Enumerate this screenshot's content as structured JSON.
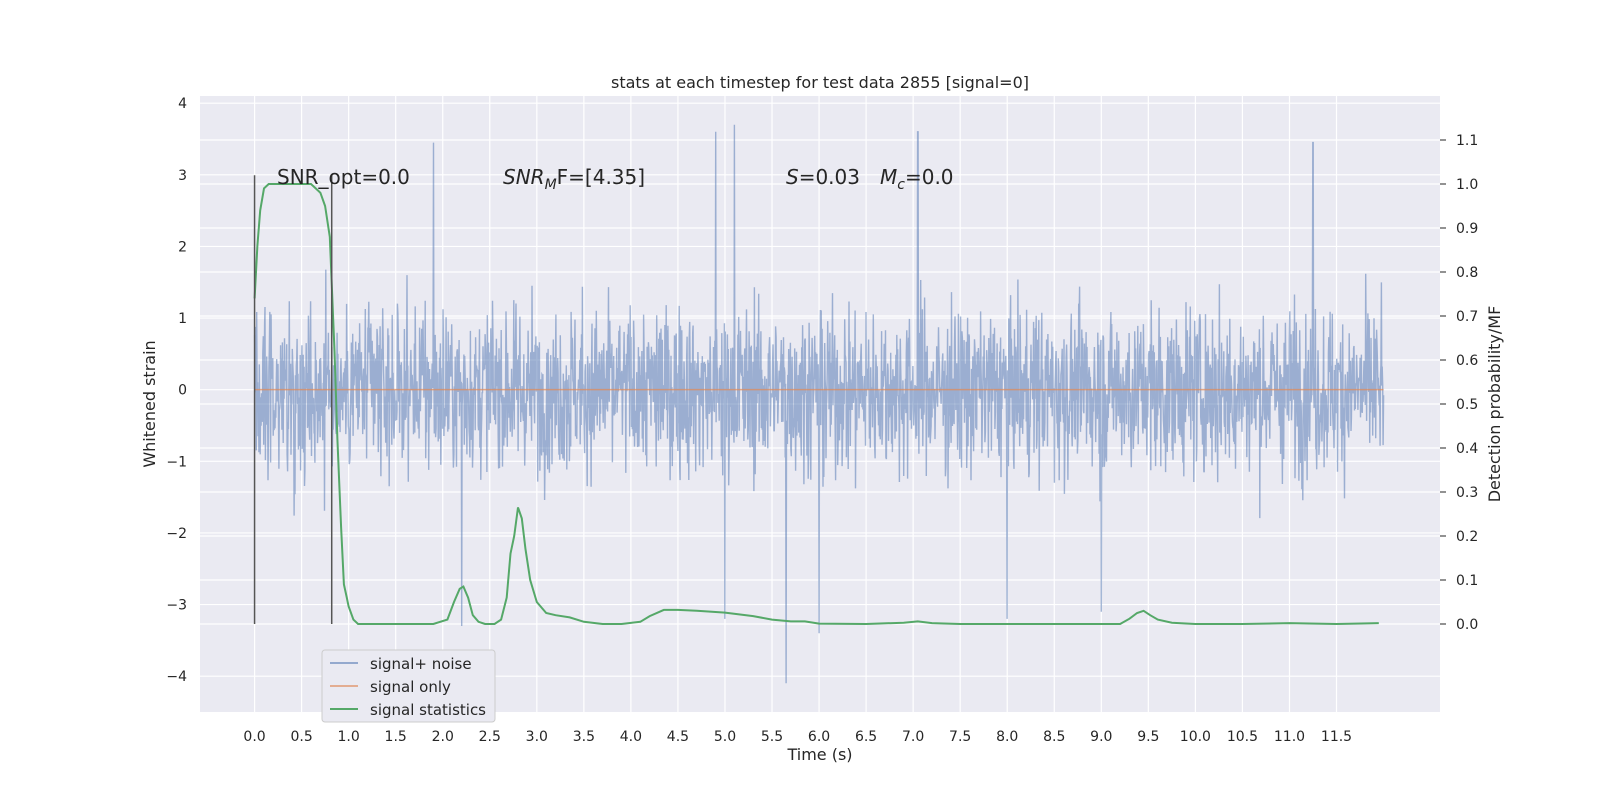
{
  "chart_data": {
    "type": "line",
    "title": "stats at each timestep for test data 2855 [signal=0]",
    "xlabel": "Time (s)",
    "ylabel_left": "Whitened strain",
    "ylabel_right": "Detection probability/MF",
    "xlim": [
      -0.58,
      12.6
    ],
    "ylim_left": [
      -4.5,
      4.1
    ],
    "ylim_right": [
      -0.2,
      1.2
    ],
    "x_ticks": [
      "0.0",
      "0.5",
      "1.0",
      "1.5",
      "2.0",
      "2.5",
      "3.0",
      "3.5",
      "4.0",
      "4.5",
      "5.0",
      "5.5",
      "6.0",
      "6.5",
      "7.0",
      "7.5",
      "8.0",
      "8.5",
      "9.0",
      "9.5",
      "10.0",
      "10.5",
      "11.0",
      "11.5"
    ],
    "y_ticks_left": [
      "−4",
      "−3",
      "−2",
      "−1",
      "0",
      "1",
      "2",
      "3",
      "4"
    ],
    "y_ticks_right": [
      "0.0",
      "0.1",
      "0.2",
      "0.3",
      "0.4",
      "0.5",
      "0.6",
      "0.7",
      "0.8",
      "0.9",
      "1.0",
      "1.1"
    ],
    "grid": true,
    "legend_position": "lower-left",
    "annotations": {
      "snr_opt": "SNR_opt=0.0",
      "snr_mf_base": "SNR",
      "snr_mf_sub": "M",
      "snr_mf_rest": "F=[4.35]",
      "s_var": "S",
      "s_val": "=0.03",
      "mc_var": "M",
      "mc_sub": "c",
      "mc_val": "=0.0"
    },
    "vlines": [
      0.0,
      0.82
    ],
    "series": [
      {
        "name": "signal+ noise",
        "color": "#4c72b0",
        "alpha": 0.5,
        "axis": "left",
        "t_range": [
          0.0,
          12.0
        ],
        "envelope_upper_typical": 2.0,
        "envelope_lower_typical": -2.2,
        "max": 3.7,
        "min": -4.1,
        "spikes": [
          [
            1.9,
            3.45
          ],
          [
            4.9,
            3.6
          ],
          [
            5.1,
            3.7
          ],
          [
            7.05,
            3.6
          ],
          [
            11.25,
            3.45
          ],
          [
            5.65,
            -4.1
          ],
          [
            6.0,
            -3.4
          ],
          [
            2.2,
            -3.3
          ],
          [
            5.0,
            -3.2
          ],
          [
            8.0,
            -3.2
          ],
          [
            9.0,
            -3.1
          ]
        ]
      },
      {
        "name": "signal only",
        "color": "#dd8452",
        "axis": "left",
        "x": [
          0.0,
          12.0
        ],
        "y": [
          0.0,
          0.0
        ]
      },
      {
        "name": "signal statistics",
        "color": "#55a868",
        "axis": "right",
        "x": [
          0.0,
          0.03,
          0.06,
          0.1,
          0.15,
          0.2,
          0.3,
          0.4,
          0.5,
          0.6,
          0.65,
          0.7,
          0.75,
          0.8,
          0.85,
          0.88,
          0.92,
          0.95,
          0.98,
          1.0,
          1.05,
          1.1,
          1.3,
          1.6,
          1.9,
          2.05,
          2.12,
          2.18,
          2.22,
          2.27,
          2.32,
          2.38,
          2.45,
          2.55,
          2.62,
          2.68,
          2.72,
          2.76,
          2.8,
          2.84,
          2.88,
          2.93,
          3.0,
          3.1,
          3.2,
          3.35,
          3.5,
          3.7,
          3.9,
          4.1,
          4.2,
          4.35,
          4.5,
          4.7,
          5.0,
          5.3,
          5.5,
          5.7,
          5.85,
          6.0,
          6.5,
          6.9,
          7.05,
          7.2,
          7.5,
          8.0,
          8.5,
          9.0,
          9.2,
          9.3,
          9.38,
          9.45,
          9.52,
          9.6,
          9.75,
          10.0,
          10.5,
          11.0,
          11.5,
          11.95
        ],
        "y": [
          0.74,
          0.86,
          0.94,
          0.99,
          1.0,
          1.0,
          1.0,
          1.0,
          1.0,
          1.0,
          0.99,
          0.98,
          0.95,
          0.88,
          0.62,
          0.42,
          0.22,
          0.09,
          0.06,
          0.04,
          0.01,
          0.0,
          0.0,
          0.0,
          0.0,
          0.01,
          0.05,
          0.08,
          0.085,
          0.06,
          0.02,
          0.005,
          0.0,
          0.0,
          0.01,
          0.06,
          0.16,
          0.2,
          0.265,
          0.24,
          0.17,
          0.1,
          0.05,
          0.025,
          0.02,
          0.015,
          0.005,
          0.0,
          0.0,
          0.005,
          0.018,
          0.032,
          0.032,
          0.03,
          0.026,
          0.018,
          0.01,
          0.006,
          0.006,
          0.001,
          0.0,
          0.003,
          0.006,
          0.002,
          0.0,
          0.0,
          0.0,
          0.0,
          0.0,
          0.012,
          0.025,
          0.03,
          0.02,
          0.01,
          0.003,
          0.0,
          0.0,
          0.002,
          0.0,
          0.002
        ]
      }
    ]
  }
}
